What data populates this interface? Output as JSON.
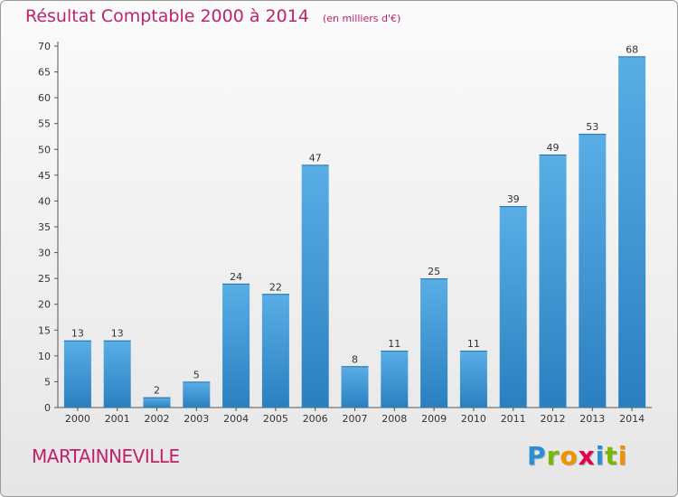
{
  "chart_data": {
    "type": "bar",
    "title": "Résultat Comptable 2000 à 2014",
    "subtitle": "(en milliers d'€)",
    "categories": [
      "2000",
      "2001",
      "2002",
      "2003",
      "2004",
      "2005",
      "2006",
      "2007",
      "2008",
      "2009",
      "2010",
      "2011",
      "2012",
      "2013",
      "2014"
    ],
    "values": [
      13,
      13,
      2,
      5,
      24,
      22,
      47,
      8,
      11,
      25,
      11,
      39,
      49,
      53,
      68
    ],
    "ylim": [
      0,
      70
    ],
    "yticks": [
      0,
      5,
      10,
      15,
      20,
      25,
      30,
      35,
      40,
      45,
      50,
      55,
      60,
      65,
      70
    ],
    "grid": false,
    "bar_color_top": "#5aaee6",
    "bar_color_bottom": "#2a7fc0"
  },
  "location": "MARTAINNEVILLE",
  "logo": {
    "letters": [
      "P",
      "r",
      "o",
      "x",
      "i",
      "t",
      "i"
    ],
    "colors": [
      "#2a8fd6",
      "#7ab800",
      "#f39200",
      "#e4004f",
      "#2a8fd6",
      "#7ab800",
      "#f39200"
    ]
  },
  "colors": {
    "title": "#c0226b",
    "axis": "#333333"
  }
}
